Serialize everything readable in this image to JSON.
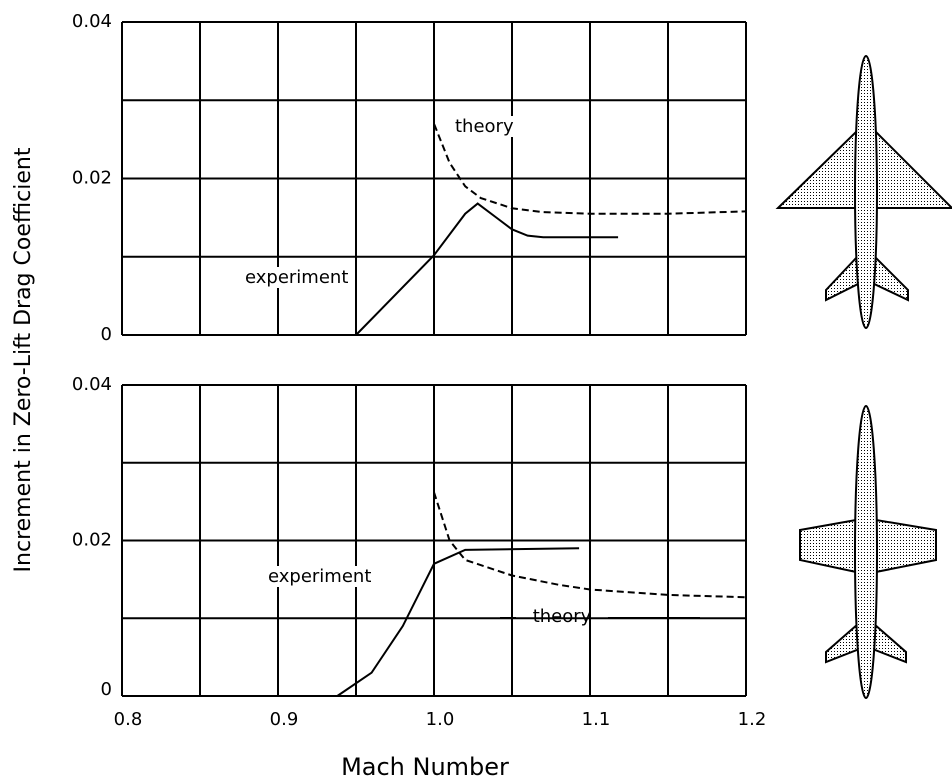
{
  "ylabel": "Increment in Zero-Lift Drag Coefficient",
  "xlabel": "Mach Number",
  "chart_data": [
    {
      "type": "line",
      "xlim": [
        0.8,
        1.2
      ],
      "ylim": [
        0,
        0.04
      ],
      "yticks": [
        0,
        0.02,
        0.04
      ],
      "grid_x": [
        0.8,
        0.85,
        0.9,
        0.95,
        1.0,
        1.05,
        1.1,
        1.15,
        1.2
      ],
      "grid_y": [
        0,
        0.01,
        0.02,
        0.03,
        0.04
      ],
      "series": [
        {
          "name": "theory",
          "color": "#000000",
          "dashed": true,
          "x": [
            1.0,
            1.0,
            1.01,
            1.02,
            1.03,
            1.05,
            1.07,
            1.1,
            1.15,
            1.2
          ],
          "values": [
            0.0102,
            0.027,
            0.022,
            0.019,
            0.0175,
            0.0162,
            0.0157,
            0.0155,
            0.0155,
            0.0158
          ]
        },
        {
          "name": "experiment",
          "color": "#000000",
          "dashed": false,
          "x": [
            0.95,
            1.0,
            1.02,
            1.028,
            1.04,
            1.05,
            1.06,
            1.07,
            1.118
          ],
          "values": [
            0,
            0.0102,
            0.0155,
            0.0168,
            0.015,
            0.0135,
            0.0127,
            0.0125,
            0.0125
          ]
        }
      ]
    },
    {
      "type": "line",
      "xlim": [
        0.8,
        1.2
      ],
      "ylim": [
        0,
        0.04
      ],
      "yticks": [
        0,
        0.02,
        0.04
      ],
      "xticks": [
        0.8,
        0.9,
        {
          "value": 1.0,
          "label": "1.0"
        },
        1.1,
        1.2
      ],
      "grid_x": [
        0.8,
        0.85,
        0.9,
        0.95,
        1.0,
        1.05,
        1.1,
        1.15,
        1.2
      ],
      "grid_y": [
        0,
        0.01,
        0.02,
        0.03,
        0.04
      ],
      "series": [
        {
          "name": "theory",
          "color": "#000000",
          "dashed": true,
          "x": [
            1.0,
            1.01,
            1.02,
            1.05,
            1.08,
            1.1,
            1.15,
            1.2
          ],
          "values": [
            0.0262,
            0.02,
            0.0175,
            0.0155,
            0.0143,
            0.0137,
            0.013,
            0.0127
          ]
        },
        {
          "name": "experiment",
          "color": "#000000",
          "dashed": false,
          "x": [
            0.938,
            0.96,
            0.98,
            0.99,
            1.0,
            1.02,
            1.093
          ],
          "values": [
            0,
            0.003,
            0.009,
            0.013,
            0.017,
            0.0188,
            0.019
          ]
        }
      ]
    }
  ]
}
